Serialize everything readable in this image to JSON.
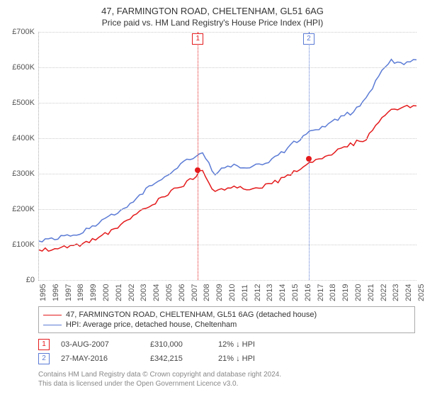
{
  "title": "47, FARMINGTON ROAD, CHELTENHAM, GL51 6AG",
  "subtitle": "Price paid vs. HM Land Registry's House Price Index (HPI)",
  "chart": {
    "type": "line",
    "ylim": [
      0,
      700
    ],
    "yticks": [
      0,
      100,
      200,
      300,
      400,
      500,
      600,
      700
    ],
    "yticklabels": [
      "£0",
      "£100K",
      "£200K",
      "£300K",
      "£400K",
      "£500K",
      "£600K",
      "£700K"
    ],
    "xlim": [
      1995,
      2025
    ],
    "xticks": [
      1995,
      1996,
      1997,
      1998,
      1999,
      2000,
      2001,
      2002,
      2003,
      2004,
      2005,
      2006,
      2007,
      2008,
      2009,
      2010,
      2011,
      2012,
      2013,
      2014,
      2015,
      2016,
      2017,
      2018,
      2019,
      2020,
      2021,
      2022,
      2023,
      2024,
      2025
    ],
    "grid_color": "#cccccc",
    "background": "#ffffff",
    "series": [
      {
        "name": "property",
        "color": "#e41a1c",
        "width": 1.5,
        "points_y": [
          85,
          88,
          92,
          98,
          108,
          125,
          140,
          165,
          190,
          215,
          235,
          260,
          280,
          310,
          245,
          260,
          260,
          258,
          265,
          280,
          300,
          320,
          340,
          350,
          370,
          385,
          400,
          445,
          480,
          490,
          492
        ]
      },
      {
        "name": "hpi",
        "color": "#5b7bd5",
        "width": 1.5,
        "points_y": [
          110,
          115,
          122,
          130,
          145,
          165,
          185,
          210,
          240,
          270,
          295,
          320,
          340,
          355,
          300,
          320,
          322,
          320,
          330,
          350,
          380,
          405,
          425,
          440,
          460,
          475,
          510,
          580,
          620,
          610,
          625
        ]
      }
    ],
    "sales": [
      {
        "idx": "1",
        "year": 2007.6,
        "price_y": 310,
        "color": "#e41a1c"
      },
      {
        "idx": "2",
        "year": 2016.4,
        "price_y": 342,
        "color": "#5b7bd5"
      }
    ]
  },
  "legend": {
    "items": [
      {
        "color": "#e41a1c",
        "label": "47, FARMINGTON ROAD, CHELTENHAM, GL51 6AG (detached house)"
      },
      {
        "color": "#5b7bd5",
        "label": "HPI: Average price, detached house, Cheltenham"
      }
    ]
  },
  "sales_table": [
    {
      "idx": "1",
      "color": "#e41a1c",
      "date": "03-AUG-2007",
      "price": "£310,000",
      "pct": "12% ↓ HPI"
    },
    {
      "idx": "2",
      "color": "#5b7bd5",
      "date": "27-MAY-2016",
      "price": "£342,215",
      "pct": "21% ↓ HPI"
    }
  ],
  "footer": {
    "line1": "Contains HM Land Registry data © Crown copyright and database right 2024.",
    "line2": "This data is licensed under the Open Government Licence v3.0."
  }
}
